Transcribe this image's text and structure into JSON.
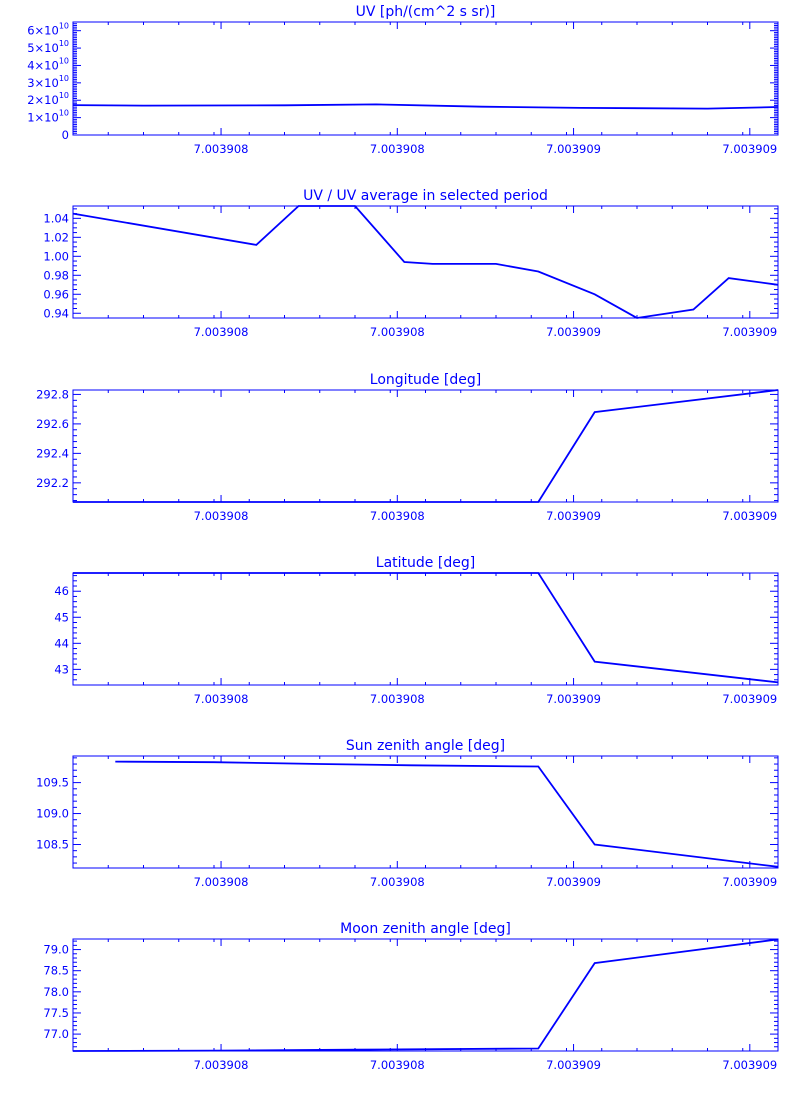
{
  "chart_data": [
    {
      "type": "line",
      "title": "UV [ph/(cm^2 s sr)]",
      "x_tick_labels": [
        "7.003908",
        "7.003908",
        "7.003909",
        "7.003909"
      ],
      "ylim": [
        0,
        65000000000
      ],
      "y_ticks": [
        {
          "value": 0,
          "label": "0",
          "exp": ""
        },
        {
          "value": 10000000000,
          "label": "1×10",
          "exp": "10"
        },
        {
          "value": 20000000000,
          "label": "2×10",
          "exp": "10"
        },
        {
          "value": 30000000000,
          "label": "3×10",
          "exp": "10"
        },
        {
          "value": 40000000000,
          "label": "4×10",
          "exp": "10"
        },
        {
          "value": 50000000000,
          "label": "5×10",
          "exp": "10"
        },
        {
          "value": 60000000000,
          "label": "6×10",
          "exp": "10"
        }
      ],
      "minor_per_major": 10,
      "series": [
        {
          "x": [
            0,
            0.1,
            0.3,
            0.43,
            0.58,
            0.72,
            0.9,
            1.0
          ],
          "values": [
            17200000000,
            16900000000,
            17100000000,
            17600000000,
            16300000000,
            15600000000,
            15200000000,
            16100000000
          ]
        }
      ]
    },
    {
      "type": "line",
      "title": "UV / UV average in selected period",
      "x_tick_labels": [
        "7.003908",
        "7.003908",
        "7.003909",
        "7.003909"
      ],
      "ylim": [
        0.935,
        1.053
      ],
      "y_ticks": [
        {
          "value": 0.94,
          "label": "0.94",
          "exp": ""
        },
        {
          "value": 0.96,
          "label": "0.96",
          "exp": ""
        },
        {
          "value": 0.98,
          "label": "0.98",
          "exp": ""
        },
        {
          "value": 1.0,
          "label": "1.00",
          "exp": ""
        },
        {
          "value": 1.02,
          "label": "1.02",
          "exp": ""
        },
        {
          "value": 1.04,
          "label": "1.04",
          "exp": ""
        }
      ],
      "minor_per_major": 4,
      "series": [
        {
          "x": [
            0,
            0.26,
            0.32,
            0.4,
            0.47,
            0.51,
            0.6,
            0.66,
            0.74,
            0.8,
            0.88,
            0.93,
            1.0
          ],
          "values": [
            1.045,
            1.012,
            1.053,
            1.053,
            0.994,
            0.992,
            0.992,
            0.984,
            0.96,
            0.935,
            0.944,
            0.977,
            0.97
          ]
        }
      ]
    },
    {
      "type": "line",
      "title": "Longitude [deg]",
      "x_tick_labels": [
        "7.003908",
        "7.003908",
        "7.003909",
        "7.003909"
      ],
      "ylim": [
        292.07,
        292.83
      ],
      "y_ticks": [
        {
          "value": 292.2,
          "label": "292.2",
          "exp": ""
        },
        {
          "value": 292.4,
          "label": "292.4",
          "exp": ""
        },
        {
          "value": 292.6,
          "label": "292.6",
          "exp": ""
        },
        {
          "value": 292.8,
          "label": "292.8",
          "exp": ""
        }
      ],
      "minor_per_major": 5,
      "series": [
        {
          "x": [
            0,
            0.66,
            0.74,
            1.0
          ],
          "values": [
            292.07,
            292.07,
            292.68,
            292.83
          ]
        }
      ]
    },
    {
      "type": "line",
      "title": "Latitude [deg]",
      "x_tick_labels": [
        "7.003908",
        "7.003908",
        "7.003909",
        "7.003909"
      ],
      "ylim": [
        42.4,
        46.7
      ],
      "y_ticks": [
        {
          "value": 43,
          "label": "43",
          "exp": ""
        },
        {
          "value": 44,
          "label": "44",
          "exp": ""
        },
        {
          "value": 45,
          "label": "45",
          "exp": ""
        },
        {
          "value": 46,
          "label": "46",
          "exp": ""
        }
      ],
      "minor_per_major": 5,
      "series": [
        {
          "x": [
            0,
            0.66,
            0.74,
            1.0
          ],
          "values": [
            46.7,
            46.7,
            43.3,
            42.5
          ]
        }
      ]
    },
    {
      "type": "line",
      "title": "Sun zenith angle [deg]",
      "x_tick_labels": [
        "7.003908",
        "7.003908",
        "7.003909",
        "7.003909"
      ],
      "ylim": [
        108.12,
        109.93
      ],
      "y_ticks": [
        {
          "value": 108.5,
          "label": "108.5",
          "exp": ""
        },
        {
          "value": 109.0,
          "label": "109.0",
          "exp": ""
        },
        {
          "value": 109.5,
          "label": "109.5",
          "exp": ""
        }
      ],
      "minor_per_major": 5,
      "series": [
        {
          "x": [
            0.06,
            0.2,
            0.35,
            0.48,
            0.66,
            0.74,
            1.0
          ],
          "values": [
            109.84,
            109.83,
            109.8,
            109.78,
            109.76,
            108.5,
            108.14
          ]
        }
      ]
    },
    {
      "type": "line",
      "title": "Moon zenith angle [deg]",
      "x_tick_labels": [
        "7.003908",
        "7.003908",
        "7.003909",
        "7.003909"
      ],
      "ylim": [
        76.6,
        79.25
      ],
      "y_ticks": [
        {
          "value": 77.0,
          "label": "77.0",
          "exp": ""
        },
        {
          "value": 77.5,
          "label": "77.5",
          "exp": ""
        },
        {
          "value": 78.0,
          "label": "78.0",
          "exp": ""
        },
        {
          "value": 78.5,
          "label": "78.5",
          "exp": ""
        },
        {
          "value": 79.0,
          "label": "79.0",
          "exp": ""
        }
      ],
      "minor_per_major": 5,
      "series": [
        {
          "x": [
            0,
            0.2,
            0.4,
            0.66,
            0.74,
            1.0
          ],
          "values": [
            76.6,
            76.61,
            76.63,
            76.66,
            78.68,
            79.24
          ]
        }
      ]
    }
  ]
}
